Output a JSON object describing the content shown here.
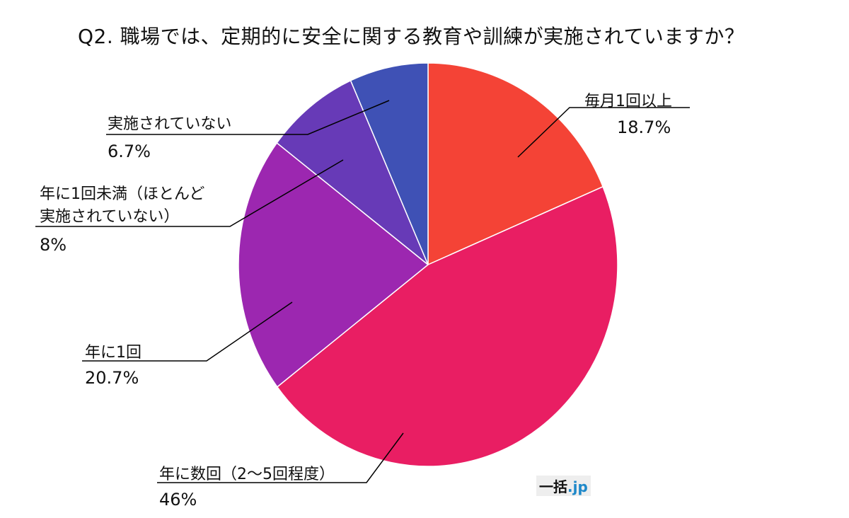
{
  "chart_data": {
    "type": "pie",
    "title": "Q2. 職場では、定期的に安全に関する教育や訓練が実施されていますか？",
    "slices": [
      {
        "label": "毎月1回以上",
        "value": 18.7,
        "value_label": "18.7%",
        "color": "#f44336"
      },
      {
        "label": "年に数回（2～5回程度）",
        "value": 46,
        "value_label": "46%",
        "color": "#e91e63"
      },
      {
        "label": "年に1回",
        "value": 20.7,
        "value_label": "20.7%",
        "color": "#9c27b0"
      },
      {
        "label": "年に1回未満（ほとんど実施されていない）",
        "value": 8,
        "value_label": "8%",
        "color": "#673ab7"
      },
      {
        "label": "実施されていない",
        "value": 6.7,
        "value_label": "6.7%",
        "color": "#3f51b5"
      }
    ],
    "start_angle": "12 o'clock",
    "direction": "clockwise",
    "legend": "none (callout labels)"
  },
  "branding": {
    "name": "一括",
    "dot": ".",
    "suffix": "jp"
  },
  "labels_display": {
    "slice3_line1": "年に1回未満（ほとんど",
    "slice3_line2": "実施されていない）"
  }
}
